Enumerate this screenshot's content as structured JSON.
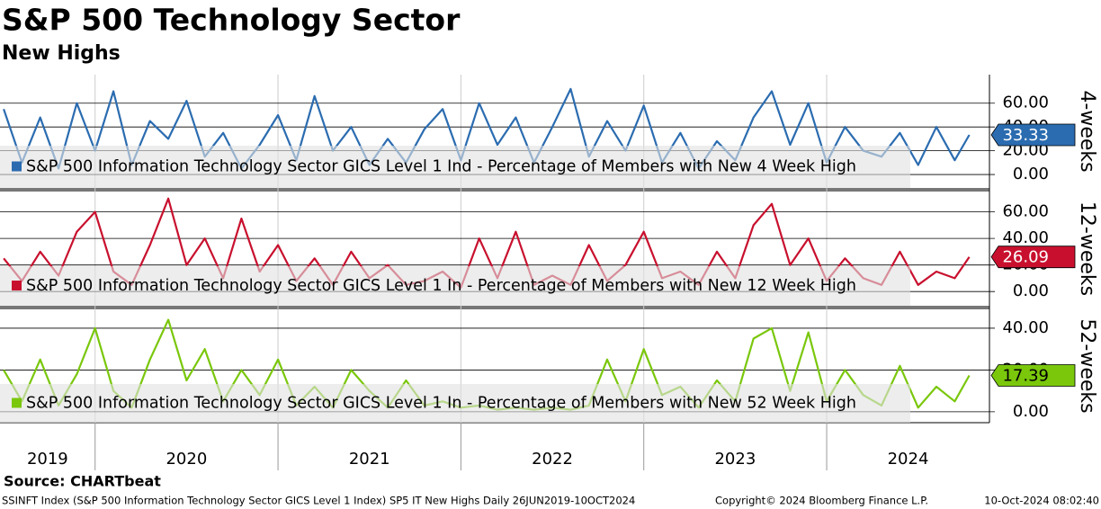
{
  "title": "S&P 500 Technology Sector",
  "subtitle": "New Highs",
  "source": "Source: CHARTbeat",
  "footer": {
    "left": "SSINFT Index (S&P 500 Information Technology Sector GICS Level 1 Index) SP5 IT New Highs  Daily 26JUN2019-10OCT2024",
    "middle": "Copyright© 2024 Bloomberg Finance L.P.",
    "right": "10-Oct-2024 08:02:40"
  },
  "time_axis": {
    "x": [
      2019.5,
      2019.6,
      2019.7,
      2019.8,
      2019.9,
      2020.0,
      2020.1,
      2020.2,
      2020.3,
      2020.4,
      2020.5,
      2020.6,
      2020.7,
      2020.8,
      2020.9,
      2021.0,
      2021.1,
      2021.2,
      2021.3,
      2021.4,
      2021.5,
      2021.6,
      2021.7,
      2021.8,
      2021.9,
      2022.0,
      2022.1,
      2022.2,
      2022.3,
      2022.4,
      2022.5,
      2022.6,
      2022.7,
      2022.8,
      2022.9,
      2023.0,
      2023.1,
      2023.2,
      2023.3,
      2023.4,
      2023.5,
      2023.6,
      2023.7,
      2023.8,
      2023.9,
      2024.0,
      2024.1,
      2024.2,
      2024.3,
      2024.4,
      2024.5,
      2024.6,
      2024.7,
      2024.78
    ],
    "xlim": [
      2019.48,
      2024.89
    ],
    "xticks": [
      2020,
      2021,
      2022,
      2023,
      2024
    ],
    "labels": [
      "2019",
      "2020",
      "2021",
      "2022",
      "2023",
      "2024"
    ]
  },
  "chart_data": [
    {
      "type": "line",
      "panel_label": "4-weeks",
      "ylim": [
        -11.3,
        84
      ],
      "grid": true,
      "yticks": [
        {
          "value": 0,
          "label": "0.00"
        },
        {
          "value": 20,
          "label": "20.00"
        },
        {
          "value": 40,
          "label": "40.00"
        },
        {
          "value": 60,
          "label": "60.00"
        }
      ],
      "series": [
        {
          "name": "S&P 500 Information Technology Sector GICS Level 1 Ind - Percentage of Members with New 4 Week High",
          "color": "#2b6cb0",
          "tag_text_color": "#ffffff",
          "values": [
            55,
            10,
            48,
            5,
            60,
            20,
            70,
            8,
            45,
            30,
            62,
            15,
            35,
            5,
            25,
            50,
            12,
            66,
            20,
            40,
            8,
            30,
            10,
            38,
            55,
            12,
            60,
            25,
            48,
            10,
            40,
            72,
            15,
            45,
            20,
            58,
            10,
            35,
            5,
            28,
            12,
            48,
            70,
            25,
            60,
            10,
            40,
            20,
            15,
            35,
            8,
            40,
            12,
            33.33
          ]
        }
      ]
    },
    {
      "type": "line",
      "panel_label": "12-weeks",
      "ylim": [
        -10.7,
        75.3
      ],
      "grid": true,
      "yticks": [
        {
          "value": 0,
          "label": "0.00"
        },
        {
          "value": 20,
          "label": "20.00"
        },
        {
          "value": 40,
          "label": "40.00"
        },
        {
          "value": 60,
          "label": "60.00"
        }
      ],
      "series": [
        {
          "name": "S&P 500 Information Technology Sector GICS Level 1 In - Percentage of Members with New 12 Week High",
          "color": "#c8102e",
          "tag_text_color": "#ffffff",
          "values": [
            25,
            8,
            30,
            12,
            45,
            60,
            15,
            5,
            35,
            70,
            20,
            40,
            10,
            55,
            15,
            35,
            8,
            25,
            5,
            30,
            10,
            20,
            5,
            8,
            15,
            3,
            40,
            10,
            45,
            5,
            12,
            5,
            35,
            8,
            20,
            45,
            10,
            15,
            5,
            30,
            10,
            50,
            66,
            20,
            40,
            8,
            25,
            10,
            5,
            30,
            5,
            15,
            10,
            26.09
          ]
        }
      ]
    },
    {
      "type": "line",
      "panel_label": "52-weeks",
      "ylim": [
        -5.2,
        49
      ],
      "grid": true,
      "yticks": [
        {
          "value": 0,
          "label": "0.00"
        },
        {
          "value": 20,
          "label": "20.00"
        },
        {
          "value": 40,
          "label": "40.00"
        }
      ],
      "series": [
        {
          "name": "S&P 500 Information Technology Sector GICS Level 1 In - Percentage of Members with New 52 Week High",
          "color": "#7ac70c",
          "tag_text_color": "#000000",
          "values": [
            20,
            5,
            25,
            3,
            18,
            40,
            10,
            2,
            25,
            44,
            15,
            30,
            5,
            20,
            8,
            25,
            3,
            12,
            2,
            20,
            10,
            2,
            15,
            3,
            5,
            2,
            3,
            1,
            2,
            1,
            2,
            1,
            3,
            25,
            5,
            30,
            8,
            12,
            2,
            15,
            5,
            35,
            40,
            10,
            38,
            5,
            20,
            8,
            3,
            22,
            2,
            12,
            5,
            17.39
          ]
        }
      ]
    }
  ]
}
